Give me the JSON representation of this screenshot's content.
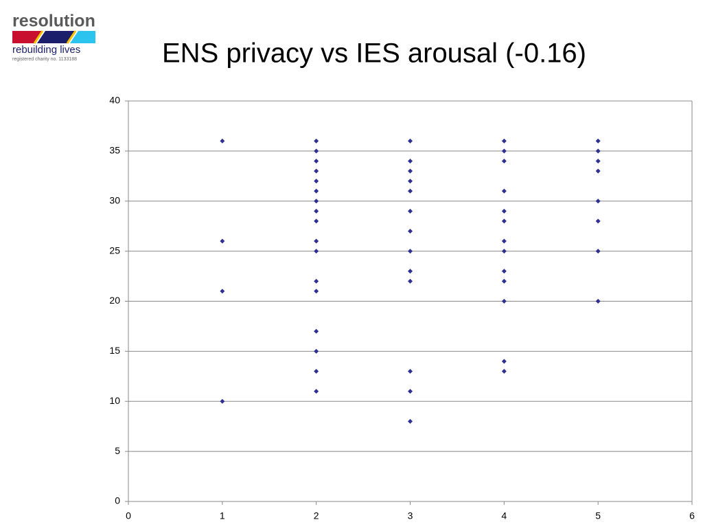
{
  "logo": {
    "name": "resolution",
    "tagline": "rebuilding lives",
    "charity": "registered charity no. 1133188"
  },
  "chart_data": {
    "type": "scatter",
    "title": "ENS privacy vs IES arousal (-0.16)",
    "x": [
      1,
      1,
      1,
      1,
      2,
      2,
      2,
      2,
      2,
      2,
      2,
      2,
      2,
      2,
      2,
      2,
      2,
      2,
      2,
      2,
      2,
      3,
      3,
      3,
      3,
      3,
      3,
      3,
      3,
      3,
      3,
      3,
      3,
      3,
      4,
      4,
      4,
      4,
      4,
      4,
      4,
      4,
      4,
      4,
      4,
      4,
      4,
      5,
      5,
      5,
      5,
      5,
      5,
      5,
      5
    ],
    "values": [
      36,
      26,
      21,
      10,
      36,
      35,
      34,
      33,
      32,
      31,
      30,
      29,
      28,
      26,
      25,
      22,
      21,
      17,
      15,
      13,
      11,
      36,
      34,
      33,
      32,
      31,
      29,
      27,
      25,
      23,
      22,
      13,
      11,
      8,
      36,
      35,
      34,
      31,
      29,
      28,
      26,
      25,
      23,
      22,
      20,
      14,
      13,
      36,
      35,
      34,
      33,
      30,
      28,
      25,
      20
    ],
    "color": "#2e3192",
    "xlim": [
      0,
      6
    ],
    "xticks": [
      0,
      1,
      2,
      3,
      4,
      5,
      6
    ],
    "ylim": [
      0,
      40
    ],
    "yticks": [
      0,
      5,
      10,
      15,
      20,
      25,
      30,
      35,
      40
    ],
    "grid": true
  }
}
